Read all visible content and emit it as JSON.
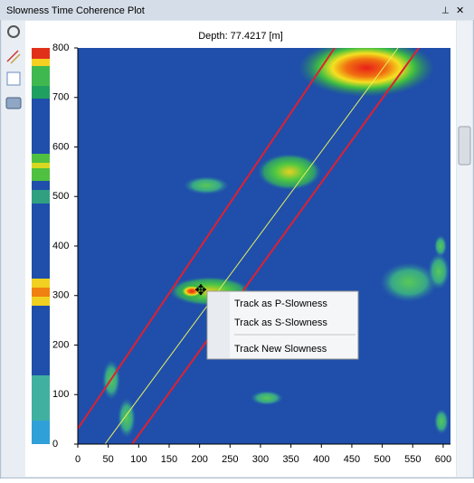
{
  "window": {
    "title": "Slowness Time Coherence Plot"
  },
  "chart_data": {
    "type": "heatmap",
    "title": "Depth: 77.4217 [m]",
    "xlim": [
      0,
      612
    ],
    "ylim": [
      0,
      800
    ],
    "xticks": [
      0,
      50,
      100,
      150,
      200,
      250,
      300,
      350,
      400,
      450,
      500,
      550,
      600
    ],
    "yticks": [
      0,
      100,
      200,
      300,
      400,
      500,
      600,
      700,
      800
    ]
  },
  "context_menu": {
    "items": [
      "Track as P-Slowness",
      "Track as S-Slowness",
      "Track New Slowness"
    ]
  }
}
